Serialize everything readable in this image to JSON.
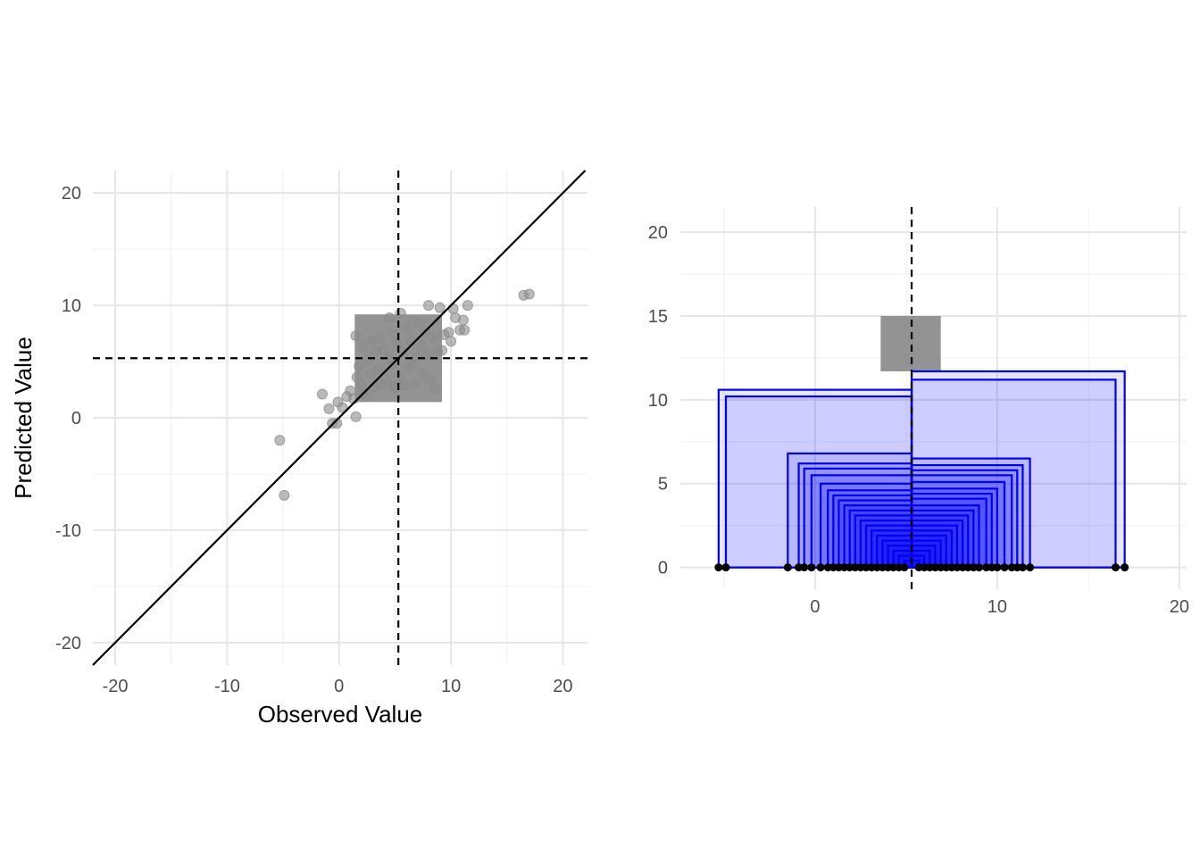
{
  "colors": {
    "grid_major": "#e6e6e6",
    "grid_minor": "#f2f2f2",
    "points": "#8c8c8c",
    "box": "#808080",
    "rect_stroke": "#0000ee",
    "rect_fill": "#0000ff",
    "dot": "#000000"
  },
  "chart_data": [
    {
      "type": "scatter",
      "xlabel": "Observed Value",
      "ylabel": "Predicted Value",
      "xlim": [
        -22,
        22.2
      ],
      "ylim": [
        -22,
        22
      ],
      "xticks": [
        -20,
        -10,
        0,
        10,
        20
      ],
      "yticks": [
        -20,
        -10,
        0,
        10,
        20
      ],
      "xtick_labels": [
        "-20",
        "-10",
        "0",
        "10",
        "20"
      ],
      "ytick_labels": [
        "-20",
        "-10",
        "0",
        "10",
        "20"
      ],
      "grid": true,
      "reference_line": "y = x",
      "mean_observed": 5.3,
      "mean_predicted": 5.3,
      "box": {
        "x": [
          1.4,
          9.2
        ],
        "y": [
          1.4,
          9.2
        ]
      },
      "points": [
        [
          -5.3,
          -2.0
        ],
        [
          -4.9,
          -6.9
        ],
        [
          -1.5,
          2.1
        ],
        [
          -0.9,
          0.8
        ],
        [
          -0.6,
          -0.5
        ],
        [
          -0.2,
          -0.5
        ],
        [
          -0.1,
          1.4
        ],
        [
          0.3,
          0.9
        ],
        [
          0.7,
          1.9
        ],
        [
          1.0,
          2.4
        ],
        [
          1.3,
          1.7
        ],
        [
          1.5,
          0.1
        ],
        [
          1.6,
          3.6
        ],
        [
          1.8,
          4.6
        ],
        [
          2.0,
          2.9
        ],
        [
          2.2,
          6.4
        ],
        [
          2.4,
          1.9
        ],
        [
          2.6,
          5.1
        ],
        [
          2.8,
          3.9
        ],
        [
          3.0,
          6.9
        ],
        [
          3.1,
          2.7
        ],
        [
          3.3,
          5.9
        ],
        [
          3.5,
          4.3
        ],
        [
          3.6,
          7.1
        ],
        [
          3.8,
          2.9
        ],
        [
          4.0,
          6.1
        ],
        [
          4.2,
          3.4
        ],
        [
          4.3,
          5.3
        ],
        [
          4.5,
          8.9
        ],
        [
          4.7,
          4.8
        ],
        [
          4.9,
          7.4
        ],
        [
          5.0,
          2.6
        ],
        [
          5.2,
          6.6
        ],
        [
          5.4,
          3.6
        ],
        [
          5.5,
          9.3
        ],
        [
          5.7,
          5.9
        ],
        [
          5.8,
          2.9
        ],
        [
          6.0,
          7.9
        ],
        [
          6.2,
          4.4
        ],
        [
          6.4,
          6.9
        ],
        [
          6.6,
          8.6
        ],
        [
          6.8,
          3.1
        ],
        [
          7.0,
          5.4
        ],
        [
          7.2,
          8.4
        ],
        [
          7.4,
          6.4
        ],
        [
          7.5,
          3.9
        ],
        [
          7.7,
          7.6
        ],
        [
          7.9,
          5.6
        ],
        [
          8.0,
          10.0
        ],
        [
          8.2,
          3.4
        ],
        [
          8.4,
          7.1
        ],
        [
          8.6,
          2.6
        ],
        [
          8.8,
          5.9
        ],
        [
          9.0,
          9.8
        ],
        [
          9.2,
          6.0
        ],
        [
          9.4,
          7.4
        ],
        [
          9.8,
          7.6
        ],
        [
          10.0,
          6.8
        ],
        [
          10.2,
          9.7
        ],
        [
          10.4,
          8.9
        ],
        [
          10.8,
          7.8
        ],
        [
          11.1,
          8.7
        ],
        [
          11.2,
          7.8
        ],
        [
          11.5,
          10.0
        ],
        [
          16.5,
          10.9
        ],
        [
          17.0,
          11.0
        ],
        [
          1.5,
          7.3
        ],
        [
          2.1,
          2.3
        ],
        [
          6.5,
          4.7
        ],
        [
          4.9,
          2.8
        ]
      ]
    },
    {
      "type": "nested-rectangles",
      "xlim": [
        -7.4,
        20.4
      ],
      "ylim": [
        -1.3,
        21.5
      ],
      "xticks": [
        0,
        10,
        20
      ],
      "yticks": [
        0,
        5,
        10,
        15,
        20
      ],
      "xtick_labels": [
        "0",
        "10",
        "20"
      ],
      "ytick_labels": [
        "0",
        "5",
        "10",
        "15",
        "20"
      ],
      "grid": true,
      "mean": 5.3,
      "grey_box": {
        "x": [
          3.6,
          6.9
        ],
        "y": [
          11.7,
          15.0
        ]
      },
      "rectangles": [
        {
          "x": [
            -5.3,
            5.3
          ],
          "height": 10.6
        },
        {
          "x": [
            -4.9,
            5.3
          ],
          "height": 10.2
        },
        {
          "x": [
            -1.5,
            5.3
          ],
          "height": 6.8
        },
        {
          "x": [
            -0.9,
            5.3
          ],
          "height": 6.2
        },
        {
          "x": [
            -0.6,
            5.3
          ],
          "height": 5.9
        },
        {
          "x": [
            -0.2,
            5.3
          ],
          "height": 5.5
        },
        {
          "x": [
            0.3,
            5.3
          ],
          "height": 5.0
        },
        {
          "x": [
            0.7,
            5.3
          ],
          "height": 4.6
        },
        {
          "x": [
            1.0,
            5.3
          ],
          "height": 4.3
        },
        {
          "x": [
            1.3,
            5.3
          ],
          "height": 4.0
        },
        {
          "x": [
            1.6,
            5.3
          ],
          "height": 3.7
        },
        {
          "x": [
            1.9,
            5.3
          ],
          "height": 3.4
        },
        {
          "x": [
            2.2,
            5.3
          ],
          "height": 3.1
        },
        {
          "x": [
            2.5,
            5.3
          ],
          "height": 2.8
        },
        {
          "x": [
            2.8,
            5.3
          ],
          "height": 2.5
        },
        {
          "x": [
            3.1,
            5.3
          ],
          "height": 2.2
        },
        {
          "x": [
            3.4,
            5.3
          ],
          "height": 1.9
        },
        {
          "x": [
            3.7,
            5.3
          ],
          "height": 1.6
        },
        {
          "x": [
            4.0,
            5.3
          ],
          "height": 1.3
        },
        {
          "x": [
            4.3,
            5.3
          ],
          "height": 1.0
        },
        {
          "x": [
            4.6,
            5.3
          ],
          "height": 0.7
        },
        {
          "x": [
            4.9,
            5.3
          ],
          "height": 0.4
        },
        {
          "x": [
            5.3,
            17.0
          ],
          "height": 11.7
        },
        {
          "x": [
            5.3,
            16.5
          ],
          "height": 11.2
        },
        {
          "x": [
            5.3,
            11.8
          ],
          "height": 6.5
        },
        {
          "x": [
            5.3,
            11.4
          ],
          "height": 6.1
        },
        {
          "x": [
            5.3,
            11.1
          ],
          "height": 5.8
        },
        {
          "x": [
            5.3,
            10.8
          ],
          "height": 5.5
        },
        {
          "x": [
            5.3,
            10.4
          ],
          "height": 5.1
        },
        {
          "x": [
            5.3,
            10.0
          ],
          "height": 4.7
        },
        {
          "x": [
            5.3,
            9.7
          ],
          "height": 4.4
        },
        {
          "x": [
            5.3,
            9.4
          ],
          "height": 4.1
        },
        {
          "x": [
            5.3,
            9.0
          ],
          "height": 3.7
        },
        {
          "x": [
            5.3,
            8.7
          ],
          "height": 3.4
        },
        {
          "x": [
            5.3,
            8.4
          ],
          "height": 3.1
        },
        {
          "x": [
            5.3,
            8.1
          ],
          "height": 2.8
        },
        {
          "x": [
            5.3,
            7.8
          ],
          "height": 2.5
        },
        {
          "x": [
            5.3,
            7.5
          ],
          "height": 2.2
        },
        {
          "x": [
            5.3,
            7.2
          ],
          "height": 1.9
        },
        {
          "x": [
            5.3,
            6.9
          ],
          "height": 1.6
        },
        {
          "x": [
            5.3,
            6.6
          ],
          "height": 1.3
        },
        {
          "x": [
            5.3,
            6.3
          ],
          "height": 1.0
        },
        {
          "x": [
            5.3,
            6.0
          ],
          "height": 0.7
        },
        {
          "x": [
            5.3,
            5.7
          ],
          "height": 0.4
        }
      ],
      "dots": [
        -5.3,
        -4.9,
        -1.5,
        -0.9,
        -0.6,
        -0.2,
        0.3,
        0.7,
        1.0,
        1.3,
        1.6,
        1.9,
        2.2,
        2.5,
        2.8,
        3.1,
        3.4,
        3.7,
        4.0,
        4.3,
        4.6,
        4.9,
        5.7,
        6.0,
        6.3,
        6.6,
        6.9,
        7.2,
        7.5,
        7.8,
        8.1,
        8.4,
        8.7,
        9.0,
        9.4,
        9.7,
        10.0,
        10.4,
        10.8,
        11.1,
        11.4,
        11.8,
        16.5,
        17.0
      ]
    }
  ]
}
